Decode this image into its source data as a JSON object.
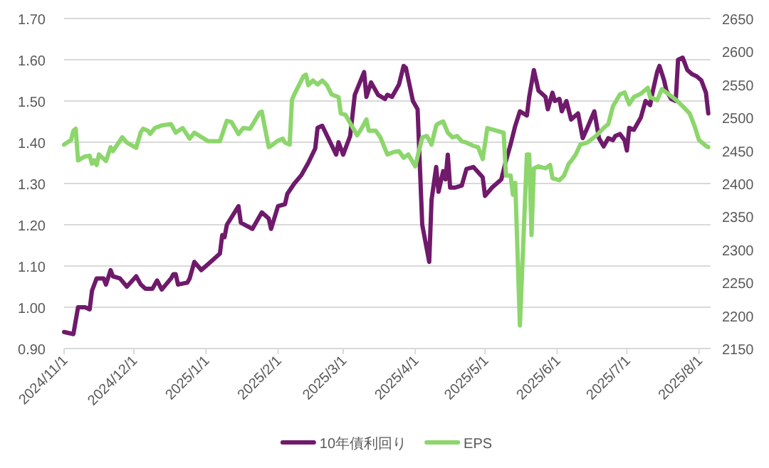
{
  "chart_data": {
    "type": "line",
    "xlim": [
      "2024-11-01",
      "2025-08-06"
    ],
    "xticks": [
      {
        "value": "2024-11-01",
        "label": "2024/11/1"
      },
      {
        "value": "2024-12-01",
        "label": "2024/12/1"
      },
      {
        "value": "2025-01-01",
        "label": "2025/1/1"
      },
      {
        "value": "2025-02-01",
        "label": "2025/2/1"
      },
      {
        "value": "2025-03-01",
        "label": "2025/3/1"
      },
      {
        "value": "2025-04-01",
        "label": "2025/4/1"
      },
      {
        "value": "2025-05-01",
        "label": "2025/5/1"
      },
      {
        "value": "2025-06-01",
        "label": "2025/6/1"
      },
      {
        "value": "2025-07-01",
        "label": "2025/7/1"
      },
      {
        "value": "2025-08-01",
        "label": "2025/8/1"
      }
    ],
    "ylim": [
      0.9,
      1.7
    ],
    "yticks": [
      {
        "value": 0.9,
        "label": "0.90"
      },
      {
        "value": 1.0,
        "label": "1.00"
      },
      {
        "value": 1.1,
        "label": "1.10"
      },
      {
        "value": 1.2,
        "label": "1.20"
      },
      {
        "value": 1.3,
        "label": "1.30"
      },
      {
        "value": 1.4,
        "label": "1.40"
      },
      {
        "value": 1.5,
        "label": "1.50"
      },
      {
        "value": 1.6,
        "label": "1.60"
      },
      {
        "value": 1.7,
        "label": "1.70"
      }
    ],
    "y2lim": [
      2150,
      2650
    ],
    "y2ticks": [
      2150,
      2200,
      2250,
      2300,
      2350,
      2400,
      2450,
      2500,
      2550,
      2600,
      2650
    ],
    "grid": "y",
    "legend": "bottom",
    "line_style": "solid",
    "marker": "none",
    "series": [
      {
        "name": "10年債利回り",
        "color": "#6f1a6b",
        "x": [
          "2024-11-01",
          "2024-11-05",
          "2024-11-07",
          "2024-11-10",
          "2024-11-12",
          "2024-11-13",
          "2024-11-15",
          "2024-11-18",
          "2024-11-19",
          "2024-11-21",
          "2024-11-22",
          "2024-11-25",
          "2024-11-28",
          "2024-12-02",
          "2024-12-04",
          "2024-12-06",
          "2024-12-09",
          "2024-12-11",
          "2024-12-13",
          "2024-12-17",
          "2024-12-18",
          "2024-12-19",
          "2024-12-20",
          "2024-12-24",
          "2024-12-25",
          "2024-12-27",
          "2024-12-30",
          "2025-01-03",
          "2025-01-07",
          "2025-01-08",
          "2025-01-09",
          "2025-01-10",
          "2025-01-15",
          "2025-01-16",
          "2025-01-21",
          "2025-01-25",
          "2025-01-28",
          "2025-01-29",
          "2025-02-01",
          "2025-02-04",
          "2025-02-05",
          "2025-02-08",
          "2025-02-11",
          "2025-02-14",
          "2025-02-17",
          "2025-02-18",
          "2025-02-20",
          "2025-02-26",
          "2025-02-27",
          "2025-03-01",
          "2025-03-04",
          "2025-03-06",
          "2025-03-10",
          "2025-03-11",
          "2025-03-13",
          "2025-03-16",
          "2025-03-19",
          "2025-03-20",
          "2025-03-22",
          "2025-03-25",
          "2025-03-27",
          "2025-03-28",
          "2025-03-31",
          "2025-04-02",
          "2025-04-04",
          "2025-04-07",
          "2025-04-08",
          "2025-04-10",
          "2025-04-11",
          "2025-04-13",
          "2025-04-14",
          "2025-04-15",
          "2025-04-16",
          "2025-04-18",
          "2025-04-21",
          "2025-04-23",
          "2025-04-26",
          "2025-04-30",
          "2025-05-01",
          "2025-05-04",
          "2025-05-08",
          "2025-05-10",
          "2025-05-12",
          "2025-05-14",
          "2025-05-16",
          "2025-05-19",
          "2025-05-20",
          "2025-05-22",
          "2025-05-24",
          "2025-05-27",
          "2025-05-28",
          "2025-05-30",
          "2025-05-31",
          "2025-06-02",
          "2025-06-03",
          "2025-06-05",
          "2025-06-07",
          "2025-06-10",
          "2025-06-12",
          "2025-06-14",
          "2025-06-17",
          "2025-06-19",
          "2025-06-21",
          "2025-06-23",
          "2025-06-25",
          "2025-06-26",
          "2025-06-28",
          "2025-06-30",
          "2025-07-01",
          "2025-07-02",
          "2025-07-04",
          "2025-07-05",
          "2025-07-07",
          "2025-07-09",
          "2025-07-11",
          "2025-07-12",
          "2025-07-14",
          "2025-07-15",
          "2025-07-17",
          "2025-07-18",
          "2025-07-20",
          "2025-07-22",
          "2025-07-23",
          "2025-07-25",
          "2025-07-27",
          "2025-07-29",
          "2025-07-31",
          "2025-08-02",
          "2025-08-04",
          "2025-08-05"
        ],
        "values": [
          0.94,
          0.935,
          1.0,
          1.0,
          0.995,
          1.04,
          1.07,
          1.07,
          1.055,
          1.09,
          1.075,
          1.07,
          1.05,
          1.075,
          1.055,
          1.045,
          1.045,
          1.065,
          1.043,
          1.07,
          1.08,
          1.08,
          1.055,
          1.06,
          1.07,
          1.11,
          1.09,
          1.11,
          1.13,
          1.175,
          1.17,
          1.2,
          1.245,
          1.205,
          1.19,
          1.23,
          1.215,
          1.19,
          1.245,
          1.25,
          1.275,
          1.3,
          1.32,
          1.35,
          1.385,
          1.435,
          1.44,
          1.37,
          1.4,
          1.37,
          1.415,
          1.515,
          1.57,
          1.51,
          1.545,
          1.515,
          1.505,
          1.515,
          1.51,
          1.54,
          1.585,
          1.58,
          1.5,
          1.48,
          1.2,
          1.11,
          1.26,
          1.34,
          1.28,
          1.33,
          1.31,
          1.37,
          1.29,
          1.29,
          1.295,
          1.335,
          1.34,
          1.315,
          1.27,
          1.29,
          1.31,
          1.355,
          1.395,
          1.44,
          1.475,
          1.465,
          1.51,
          1.575,
          1.525,
          1.51,
          1.48,
          1.52,
          1.5,
          1.505,
          1.475,
          1.5,
          1.455,
          1.47,
          1.41,
          1.435,
          1.475,
          1.41,
          1.39,
          1.41,
          1.405,
          1.415,
          1.42,
          1.405,
          1.38,
          1.435,
          1.43,
          1.44,
          1.46,
          1.5,
          1.49,
          1.52,
          1.57,
          1.585,
          1.55,
          1.525,
          1.505,
          1.5,
          1.6,
          1.605,
          1.575,
          1.565,
          1.56,
          1.55,
          1.52,
          1.47
        ]
      },
      {
        "name": "EPS",
        "color": "#8cd66c",
        "axis": "y2",
        "x": [
          "2024-11-01",
          "2024-11-04",
          "2024-11-05",
          "2024-11-06",
          "2024-11-07",
          "2024-11-10",
          "2024-11-12",
          "2024-11-13",
          "2024-11-14",
          "2024-11-15",
          "2024-11-16",
          "2024-11-19",
          "2024-11-21",
          "2024-11-22",
          "2024-11-26",
          "2024-11-28",
          "2024-12-02",
          "2024-12-04",
          "2024-12-05",
          "2024-12-07",
          "2024-12-08",
          "2024-12-10",
          "2024-12-13",
          "2024-12-17",
          "2024-12-19",
          "2024-12-22",
          "2024-12-25",
          "2024-12-27",
          "2025-01-02",
          "2025-01-07",
          "2025-01-10",
          "2025-01-12",
          "2025-01-15",
          "2025-01-17",
          "2025-01-20",
          "2025-01-24",
          "2025-01-25",
          "2025-01-28",
          "2025-01-29",
          "2025-02-01",
          "2025-02-03",
          "2025-02-04",
          "2025-02-06",
          "2025-02-07",
          "2025-02-08",
          "2025-02-12",
          "2025-02-13",
          "2025-02-14",
          "2025-02-16",
          "2025-02-18",
          "2025-02-20",
          "2025-02-22",
          "2025-02-24",
          "2025-02-27",
          "2025-02-28",
          "2025-03-02",
          "2025-03-07",
          "2025-03-09",
          "2025-03-11",
          "2025-03-12",
          "2025-03-15",
          "2025-03-17",
          "2025-03-20",
          "2025-03-23",
          "2025-03-25",
          "2025-03-27",
          "2025-03-29",
          "2025-04-01",
          "2025-04-04",
          "2025-04-06",
          "2025-04-08",
          "2025-04-10",
          "2025-04-11",
          "2025-04-13",
          "2025-04-15",
          "2025-04-17",
          "2025-04-19",
          "2025-04-21",
          "2025-04-23",
          "2025-04-26",
          "2025-04-28",
          "2025-04-30",
          "2025-05-02",
          "2025-05-09",
          "2025-05-10",
          "2025-05-12",
          "2025-05-13",
          "2025-05-14",
          "2025-05-16",
          "2025-05-19",
          "2025-05-20",
          "2025-05-21",
          "2025-05-22",
          "2025-05-24",
          "2025-05-27",
          "2025-05-29",
          "2025-05-30",
          "2025-06-02",
          "2025-06-04",
          "2025-06-06",
          "2025-06-07",
          "2025-06-09",
          "2025-06-11",
          "2025-06-14",
          "2025-06-18",
          "2025-06-21",
          "2025-06-23",
          "2025-06-25",
          "2025-06-28",
          "2025-06-30",
          "2025-07-02",
          "2025-07-04",
          "2025-07-07",
          "2025-07-10",
          "2025-07-11",
          "2025-07-14",
          "2025-07-16",
          "2025-07-19",
          "2025-07-22",
          "2025-07-25",
          "2025-07-28",
          "2025-07-30",
          "2025-08-01",
          "2025-08-04",
          "2025-08-05"
        ],
        "values": [
          2459,
          2466,
          2480,
          2483,
          2435,
          2441,
          2442,
          2430,
          2435,
          2428,
          2444,
          2434,
          2455,
          2449,
          2470,
          2462,
          2454,
          2478,
          2483,
          2480,
          2475,
          2484,
          2488,
          2490,
          2477,
          2484,
          2468,
          2477,
          2464,
          2464,
          2495,
          2493,
          2475,
          2484,
          2483,
          2507,
          2509,
          2455,
          2457,
          2465,
          2468,
          2462,
          2459,
          2527,
          2535,
          2563,
          2565,
          2549,
          2556,
          2550,
          2556,
          2549,
          2535,
          2531,
          2506,
          2504,
          2473,
          2484,
          2497,
          2480,
          2480,
          2470,
          2444,
          2448,
          2449,
          2439,
          2444,
          2426,
          2470,
          2472,
          2459,
          2488,
          2491,
          2494,
          2477,
          2470,
          2472,
          2464,
          2462,
          2457,
          2455,
          2437,
          2484,
          2477,
          2412,
          2412,
          2383,
          2401,
          2185,
          2444,
          2444,
          2322,
          2423,
          2426,
          2423,
          2428,
          2408,
          2405,
          2412,
          2430,
          2434,
          2444,
          2459,
          2462,
          2473,
          2484,
          2490,
          2517,
          2535,
          2538,
          2520,
          2531,
          2536,
          2545,
          2531,
          2526,
          2543,
          2535,
          2527,
          2517,
          2506,
          2488,
          2466,
          2457,
          2455
        ]
      }
    ]
  }
}
